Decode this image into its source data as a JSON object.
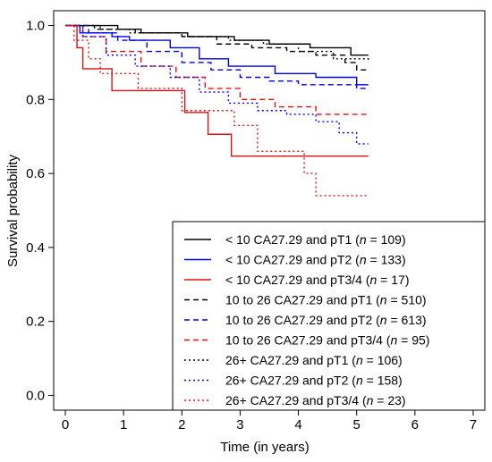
{
  "chart_data": {
    "type": "line",
    "title": "",
    "xlabel": "Time (in years)",
    "ylabel": "Survival probability",
    "xlim": [
      -0.2,
      7.2
    ],
    "ylim": [
      -0.04,
      1.04
    ],
    "xticks": [
      "0",
      "1",
      "2",
      "3",
      "4",
      "5",
      "6",
      "7"
    ],
    "yticks": [
      "0.0",
      "0.2",
      "0.4",
      "0.6",
      "0.8",
      "1.0"
    ],
    "legend_position": "bottom-right",
    "series": [
      {
        "label_pre": "< 10 CA27.29 and pT1 (",
        "label_post": " = 109)",
        "color": "#000000",
        "dash": "solid",
        "x": [
          0,
          0.9,
          1.3,
          2.1,
          2.9,
          3.5,
          4.2,
          4.9,
          5.2
        ],
        "y": [
          1.0,
          0.99,
          0.98,
          0.97,
          0.96,
          0.95,
          0.94,
          0.92,
          0.92
        ]
      },
      {
        "label_pre": "< 10 CA27.29 and pT2 (",
        "label_post": " = 133)",
        "color": "#0000ee",
        "dash": "solid",
        "x": [
          0,
          0.25,
          0.8,
          1.1,
          1.8,
          2.3,
          2.8,
          3.6,
          4.3,
          5.0,
          5.2
        ],
        "y": [
          1.0,
          0.98,
          0.97,
          0.96,
          0.94,
          0.91,
          0.89,
          0.87,
          0.86,
          0.84,
          0.84
        ]
      },
      {
        "label_pre": "< 10 CA27.29 and pT3/4 (",
        "label_post": " = 17)",
        "color": "#dd1111",
        "dash": "solid",
        "x": [
          0,
          0.2,
          0.3,
          0.8,
          2.05,
          2.45,
          2.85,
          5.2
        ],
        "y": [
          1.0,
          0.94,
          0.883,
          0.824,
          0.765,
          0.706,
          0.647,
          0.647
        ]
      },
      {
        "label_pre": "10 to 26 CA27.29 and pT1 (",
        "label_post": " = 510)",
        "color": "#000000",
        "dash": "dashed",
        "x": [
          0,
          0.5,
          1.2,
          2.0,
          2.6,
          3.2,
          3.8,
          4.3,
          4.8,
          5.0,
          5.2
        ],
        "y": [
          1.0,
          0.99,
          0.98,
          0.97,
          0.95,
          0.94,
          0.93,
          0.92,
          0.9,
          0.88,
          0.88
        ]
      },
      {
        "label_pre": "10 to 26 CA27.29 and pT2 (",
        "label_post": " = 613)",
        "color": "#0000ee",
        "dash": "dashed",
        "x": [
          0,
          0.4,
          0.9,
          1.4,
          2.0,
          2.5,
          3.0,
          3.5,
          4.0,
          4.5,
          5.0,
          5.2
        ],
        "y": [
          1.0,
          0.98,
          0.96,
          0.93,
          0.9,
          0.88,
          0.86,
          0.85,
          0.84,
          0.84,
          0.83,
          0.83
        ]
      },
      {
        "label_pre": "10 to 26 CA27.29 and pT3/4 (",
        "label_post": " = 95)",
        "color": "#dd1111",
        "dash": "dashed",
        "x": [
          0,
          0.3,
          0.7,
          1.3,
          1.9,
          2.4,
          3.0,
          3.6,
          4.3,
          5.0,
          5.2
        ],
        "y": [
          1.0,
          0.97,
          0.93,
          0.89,
          0.86,
          0.83,
          0.8,
          0.78,
          0.76,
          0.76,
          0.76
        ]
      },
      {
        "label_pre": "26+ CA27.29 and pT1 (",
        "label_post": " = 106)",
        "color": "#000000",
        "dash": "dotted",
        "x": [
          0,
          0.6,
          1.1,
          2.0,
          2.8,
          3.4,
          4.0,
          4.6,
          5.2
        ],
        "y": [
          1.0,
          0.99,
          0.98,
          0.97,
          0.96,
          0.95,
          0.93,
          0.91,
          0.9
        ]
      },
      {
        "label_pre": "26+ CA27.29 and pT2 (",
        "label_post": " = 158)",
        "color": "#0000ee",
        "dash": "dotted",
        "x": [
          0,
          0.3,
          0.7,
          1.2,
          1.8,
          2.3,
          2.8,
          3.3,
          3.8,
          4.3,
          4.7,
          5.0,
          5.2
        ],
        "y": [
          1.0,
          0.97,
          0.92,
          0.89,
          0.86,
          0.82,
          0.79,
          0.77,
          0.76,
          0.74,
          0.71,
          0.68,
          0.68
        ]
      },
      {
        "label_pre": "26+ CA27.29 and pT3/4 (",
        "label_post": " = 23)",
        "color": "#dd1111",
        "dash": "dotted",
        "x": [
          0,
          0.15,
          0.4,
          0.6,
          1.25,
          2.0,
          2.9,
          3.3,
          4.1,
          4.3,
          5.2
        ],
        "y": [
          1.0,
          0.96,
          0.91,
          0.87,
          0.83,
          0.77,
          0.73,
          0.66,
          0.6,
          0.54,
          0.54
        ]
      }
    ]
  }
}
